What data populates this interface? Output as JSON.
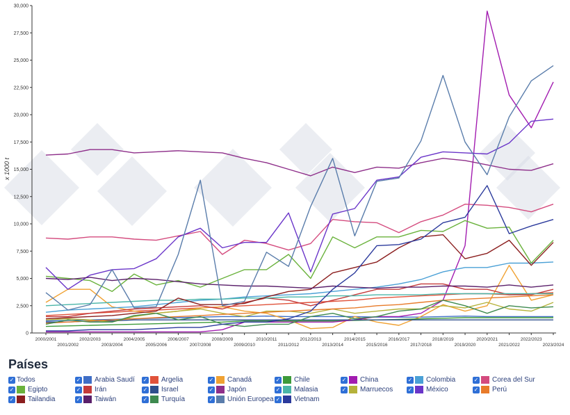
{
  "chart_data": {
    "type": "line",
    "title": "",
    "ylabel": "x 1000 t",
    "xlabel": "",
    "ylim": [
      0,
      30000
    ],
    "yticks": [
      "0",
      "2,500",
      "5,000",
      "7,500",
      "10,000",
      "12,500",
      "15,000",
      "17,500",
      "20,000",
      "22,500",
      "25,000",
      "27,500",
      "30,000"
    ],
    "grid": false,
    "legend_position": "bottom",
    "categories": [
      "2000/2001",
      "2001/2002",
      "2002/2003",
      "2003/2004",
      "2004/2005",
      "2005/2006",
      "2006/2007",
      "2007/2008",
      "2008/2009",
      "2009/2010",
      "2010/2011",
      "2011/2012",
      "2012/2013",
      "2013/2014",
      "2014/2015",
      "2015/2016",
      "2016/2017",
      "2017/2018",
      "2018/2019",
      "2019/2020",
      "2020/2021",
      "2021/2022",
      "2022/2023",
      "2023/2024"
    ],
    "series": [
      {
        "name": "Arabia Saudí",
        "color": "#3f6ec6",
        "values": [
          1100,
          1150,
          1200,
          1250,
          1300,
          1350,
          1400,
          1450,
          1500,
          1500,
          1550,
          1500,
          1500,
          1500,
          1500,
          1450,
          1450,
          1450,
          1500,
          1550,
          1500,
          1500,
          1500,
          1500
        ]
      },
      {
        "name": "Argelia",
        "color": "#e0523a",
        "values": [
          1600,
          1700,
          1800,
          1900,
          2000,
          2100,
          2200,
          2300,
          2400,
          2500,
          2600,
          2700,
          2800,
          2900,
          3000,
          3200,
          3300,
          3400,
          3500,
          3600,
          3600,
          3500,
          3600,
          3700
        ]
      },
      {
        "name": "Canadá",
        "color": "#f0a132",
        "values": [
          2800,
          4000,
          4000,
          2400,
          2000,
          1800,
          2000,
          2300,
          2400,
          2000,
          1800,
          1200,
          400,
          500,
          1500,
          1000,
          700,
          1500,
          2600,
          2000,
          2500,
          6200,
          3000,
          3500
        ]
      },
      {
        "name": "Chile",
        "color": "#3d9a3a",
        "values": [
          600,
          650,
          700,
          750,
          800,
          850,
          900,
          950,
          1000,
          1100,
          1100,
          1100,
          1100,
          1100,
          1150,
          1200,
          1250,
          1300,
          1350,
          1400,
          1400,
          1400,
          1400,
          1400
        ]
      },
      {
        "name": "China",
        "color": "#a21cb0",
        "values": [
          100,
          100,
          100,
          100,
          100,
          100,
          100,
          100,
          300,
          1000,
          1000,
          1000,
          1000,
          1000,
          1200,
          1500,
          1500,
          1800,
          3000,
          8000,
          29500,
          21800,
          18800,
          23000
        ]
      },
      {
        "name": "Colombia",
        "color": "#4aa0d6",
        "values": [
          1900,
          2100,
          2200,
          2300,
          2400,
          2600,
          2800,
          3000,
          3100,
          3300,
          3400,
          3500,
          3600,
          3800,
          4000,
          4200,
          4500,
          4900,
          5600,
          6000,
          6000,
          6400,
          6400,
          6500
        ]
      },
      {
        "name": "Corea del Sur",
        "color": "#d44b7e",
        "values": [
          8700,
          8600,
          8800,
          8800,
          8600,
          8500,
          8900,
          9300,
          7200,
          8500,
          8200,
          7600,
          8200,
          10400,
          10200,
          10100,
          9200,
          10200,
          10800,
          11800,
          11700,
          11500,
          11100,
          11800
        ]
      },
      {
        "name": "Egipto",
        "color": "#6ab23c",
        "values": [
          5200,
          5000,
          4800,
          3800,
          5400,
          4400,
          4800,
          4200,
          5000,
          5800,
          5800,
          7200,
          5000,
          8800,
          7800,
          8800,
          8800,
          9400,
          9300,
          10300,
          9600,
          9700,
          6400,
          8500
        ]
      },
      {
        "name": "Irán",
        "color": "#c43a3a",
        "values": [
          1500,
          1500,
          1800,
          2000,
          2200,
          2300,
          2400,
          2500,
          2200,
          2800,
          3200,
          3000,
          2500,
          3000,
          3500,
          4000,
          4000,
          4500,
          4500,
          4000,
          4000,
          3500,
          3500,
          4000
        ]
      },
      {
        "name": "Israel",
        "color": "#2e4f8c",
        "values": [
          1000,
          1000,
          1100,
          1100,
          1200,
          1200,
          1200,
          1200,
          1200,
          1200,
          1200,
          1200,
          1200,
          1200,
          1200,
          1200,
          1200,
          1200,
          1200,
          1200,
          1200,
          1200,
          1200,
          1200
        ]
      },
      {
        "name": "Japón",
        "color": "#8e2f8a",
        "values": [
          16300,
          16400,
          16800,
          16800,
          16500,
          16600,
          16700,
          16600,
          16500,
          16000,
          15600,
          15000,
          14400,
          15200,
          14700,
          15200,
          15100,
          15600,
          16000,
          15800,
          15400,
          15000,
          14900,
          15500
        ]
      },
      {
        "name": "Malasia",
        "color": "#4ab5a8",
        "values": [
          2500,
          2600,
          2700,
          2800,
          2900,
          3000,
          3000,
          3100,
          3100,
          3200,
          3200,
          3300,
          3300,
          3400,
          3400,
          3500,
          3500,
          3500,
          3600,
          3600,
          3600,
          3600,
          3600,
          3600
        ]
      },
      {
        "name": "Marruecos",
        "color": "#b5b23a",
        "values": [
          1200,
          1300,
          1200,
          1000,
          1500,
          1800,
          2000,
          2200,
          1800,
          1500,
          2000,
          2000,
          1800,
          2200,
          1800,
          2000,
          2200,
          2200,
          2500,
          2300,
          2800,
          2200,
          2000,
          2800
        ]
      },
      {
        "name": "México",
        "color": "#6a35c9",
        "values": [
          6000,
          4000,
          5300,
          5800,
          5900,
          6800,
          8800,
          9600,
          7800,
          8300,
          8300,
          11000,
          5600,
          10900,
          11400,
          14000,
          14300,
          16100,
          16600,
          16500,
          16400,
          17400,
          19400,
          19600
        ]
      },
      {
        "name": "Perú",
        "color": "#e87b2a",
        "values": [
          900,
          1000,
          1100,
          1200,
          1300,
          1400,
          1500,
          1600,
          1700,
          1800,
          1900,
          2000,
          2100,
          2200,
          2300,
          2500,
          2600,
          2800,
          3000,
          3100,
          3200,
          3300,
          3400,
          3500
        ]
      },
      {
        "name": "Tailandia",
        "color": "#8b1e1e",
        "values": [
          1300,
          1400,
          1500,
          1600,
          1800,
          2000,
          3200,
          2600,
          2600,
          2700,
          3300,
          3800,
          4000,
          5500,
          6000,
          6500,
          7800,
          8800,
          9000,
          6800,
          7300,
          8500,
          6200,
          8300
        ]
      },
      {
        "name": "Taiwán",
        "color": "#5a1f6a",
        "values": [
          5000,
          4900,
          5100,
          4800,
          5000,
          4900,
          4700,
          4500,
          4400,
          4300,
          4300,
          4200,
          4100,
          4300,
          4200,
          4100,
          4200,
          4200,
          4300,
          4300,
          4200,
          4400,
          4200,
          4400
        ]
      },
      {
        "name": "Turquía",
        "color": "#3e8a4f",
        "values": [
          800,
          1200,
          1000,
          1000,
          1600,
          1800,
          1200,
          1500,
          800,
          600,
          800,
          800,
          1500,
          1800,
          1300,
          1500,
          2000,
          2200,
          3000,
          2500,
          1800,
          2500,
          2300,
          2400
        ]
      },
      {
        "name": "Unión Europea",
        "color": "#5a7dab",
        "values": [
          3700,
          2100,
          2600,
          5800,
          2300,
          2400,
          7200,
          14000,
          2500,
          2900,
          7400,
          6100,
          11600,
          16000,
          8900,
          13900,
          14200,
          17600,
          23600,
          17500,
          14500,
          19800,
          23100,
          24500
        ]
      },
      {
        "name": "Vietnam",
        "color": "#2b3a9c",
        "values": [
          200,
          200,
          300,
          300,
          300,
          400,
          500,
          500,
          800,
          1000,
          1000,
          1300,
          2000,
          4000,
          5500,
          8000,
          8100,
          8600,
          10100,
          10600,
          13500,
          9100,
          9800,
          10400
        ]
      }
    ]
  },
  "legend": {
    "title": "Países",
    "items": [
      {
        "label": "Todos",
        "color": ""
      },
      {
        "label": "Arabia Saudí",
        "color": "#3f6ec6"
      },
      {
        "label": "Argelia",
        "color": "#e0523a"
      },
      {
        "label": "Canadá",
        "color": "#f0a132"
      },
      {
        "label": "Chile",
        "color": "#3d9a3a"
      },
      {
        "label": "China",
        "color": "#a21cb0"
      },
      {
        "label": "Colombia",
        "color": "#4aa0d6"
      },
      {
        "label": "Corea del Sur",
        "color": "#d44b7e"
      },
      {
        "label": "Egipto",
        "color": "#6ab23c"
      },
      {
        "label": "Irán",
        "color": "#c43a3a"
      },
      {
        "label": "Israel",
        "color": "#2e4f8c"
      },
      {
        "label": "Japón",
        "color": "#8e2f8a"
      },
      {
        "label": "Malasia",
        "color": "#4ab5a8"
      },
      {
        "label": "Marruecos",
        "color": "#b5b23a"
      },
      {
        "label": "México",
        "color": "#6a35c9"
      },
      {
        "label": "Perú",
        "color": "#e87b2a"
      },
      {
        "label": "Tailandia",
        "color": "#8b1e1e"
      },
      {
        "label": "Taiwán",
        "color": "#5a1f6a"
      },
      {
        "label": "Turquía",
        "color": "#3e8a4f"
      },
      {
        "label": "Unión Europea",
        "color": "#5a7dab"
      },
      {
        "label": "Vietnam",
        "color": "#2b3a9c"
      }
    ]
  }
}
